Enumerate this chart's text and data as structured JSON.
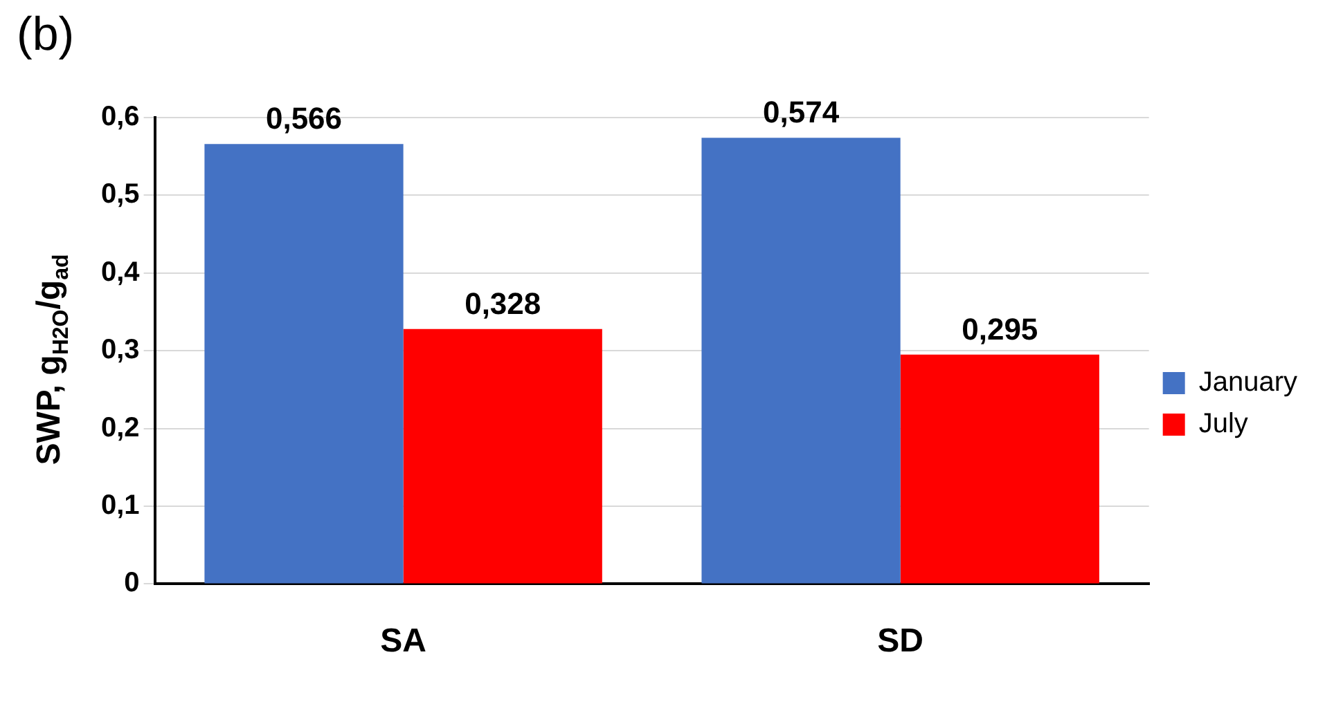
{
  "chart_data": {
    "type": "bar",
    "title": "(b)",
    "ylabel": "SWP, g$_{H2O}$/g$_{ad}$",
    "categories": [
      "SA",
      "SD"
    ],
    "series": [
      {
        "name": "January",
        "color": "#4472c4",
        "values": [
          0.566,
          0.574
        ],
        "value_labels": [
          "0,566",
          "0,574"
        ]
      },
      {
        "name": "July",
        "color": "#ff0000",
        "values": [
          0.328,
          0.295
        ],
        "value_labels": [
          "0,328",
          "0,295"
        ]
      }
    ],
    "ylim": [
      0,
      0.6
    ],
    "yticks": [
      {
        "value": 0,
        "label": "0"
      },
      {
        "value": 0.1,
        "label": "0,1"
      },
      {
        "value": 0.2,
        "label": "0,2"
      },
      {
        "value": 0.3,
        "label": "0,3"
      },
      {
        "value": 0.4,
        "label": "0,4"
      },
      {
        "value": 0.5,
        "label": "0,5"
      },
      {
        "value": 0.6,
        "label": "0,6"
      }
    ],
    "grid": "y",
    "legend": "right"
  }
}
